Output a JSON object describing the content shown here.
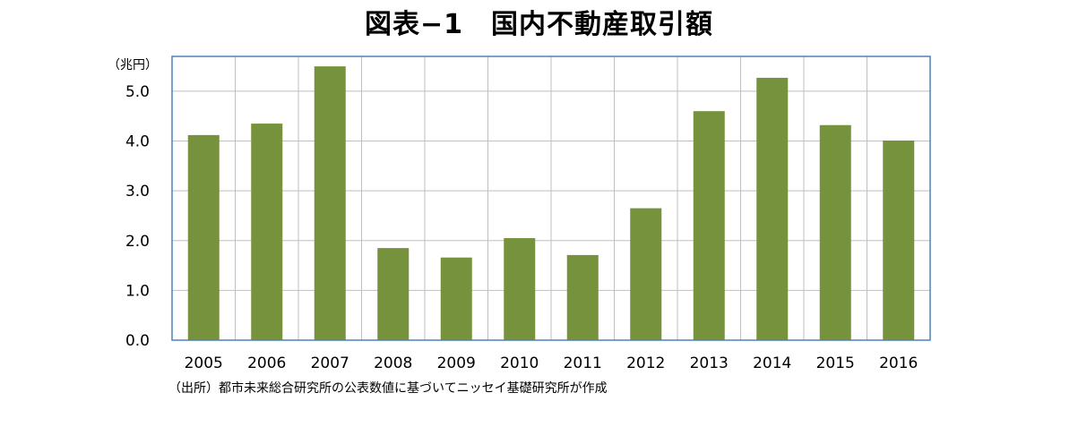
{
  "chart_data": {
    "type": "bar",
    "title": "図表−1　国内不動産取引額",
    "unit_label": "（兆円）",
    "source": "（出所）都市未来総合研究所の公表数値に基づいてニッセイ基礎研究所が作成",
    "categories": [
      "2005",
      "2006",
      "2007",
      "2008",
      "2009",
      "2010",
      "2011",
      "2012",
      "2013",
      "2014",
      "2015",
      "2016"
    ],
    "values": [
      4.12,
      4.35,
      5.5,
      1.85,
      1.66,
      2.05,
      1.71,
      2.65,
      4.6,
      5.27,
      4.32,
      4.01
    ],
    "ylim": [
      0,
      5.7
    ],
    "yticks": [
      "0.0",
      "1.0",
      "2.0",
      "3.0",
      "4.0",
      "5.0"
    ],
    "grid": true,
    "legend": "none",
    "bar_color": "#76923C",
    "grid_color": "#BFBFBF",
    "frame_color": "#4F81BD"
  }
}
